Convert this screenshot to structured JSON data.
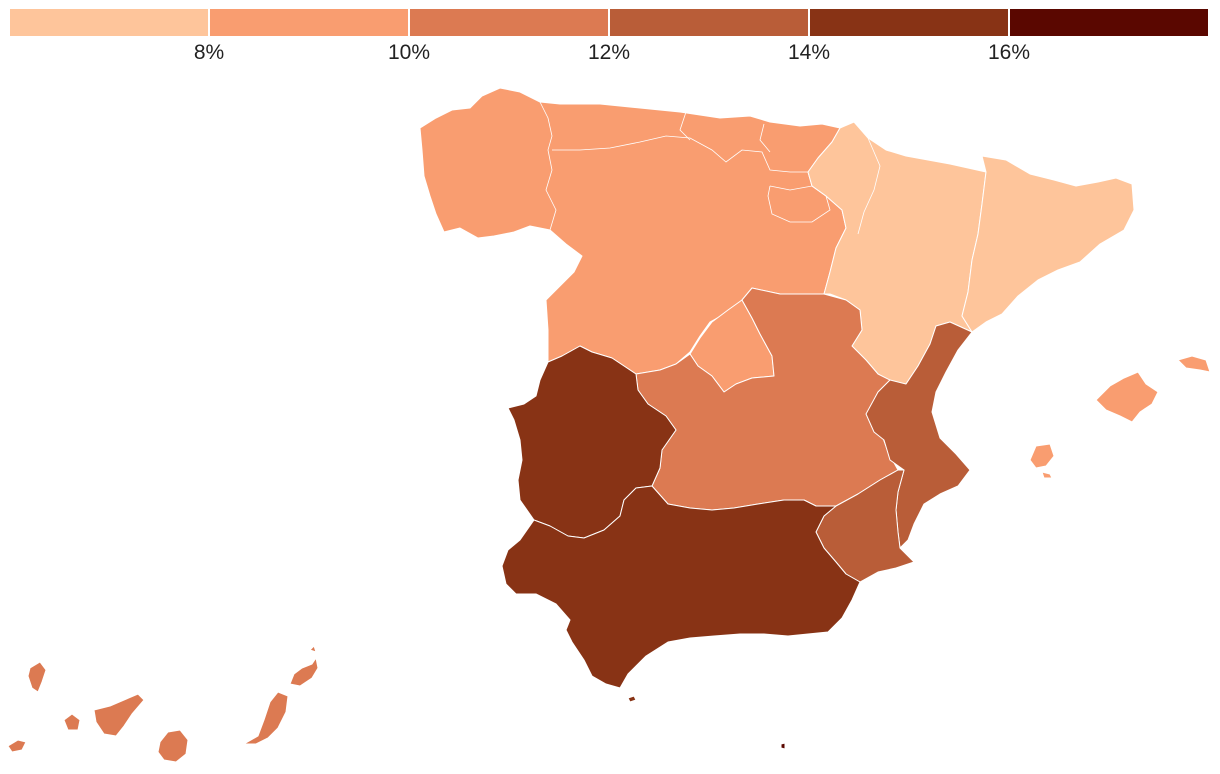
{
  "legend": {
    "bins": [
      {
        "color": "#fec59b"
      },
      {
        "color": "#f99d70"
      },
      {
        "color": "#dc7a52"
      },
      {
        "color": "#b95d38"
      },
      {
        "color": "#883315"
      },
      {
        "color": "#5a0700"
      }
    ],
    "ticks": [
      "8%",
      "10%",
      "12%",
      "14%",
      "16%"
    ]
  },
  "map": {
    "regions": [
      {
        "id": "north-west",
        "bin": 1
      },
      {
        "id": "north-east",
        "bin": 0
      },
      {
        "id": "catalonia",
        "bin": 0
      },
      {
        "id": "madrid",
        "bin": 1
      },
      {
        "id": "castilla-la-mancha",
        "bin": 2
      },
      {
        "id": "valencia",
        "bin": 3
      },
      {
        "id": "murcia",
        "bin": 3
      },
      {
        "id": "extremadura",
        "bin": 4
      },
      {
        "id": "andalusia",
        "bin": 4
      },
      {
        "id": "balearic-islands",
        "bin": 1
      },
      {
        "id": "canary-islands",
        "bin": 2
      },
      {
        "id": "ceuta",
        "bin": 4
      },
      {
        "id": "melilla",
        "bin": 5
      }
    ]
  }
}
